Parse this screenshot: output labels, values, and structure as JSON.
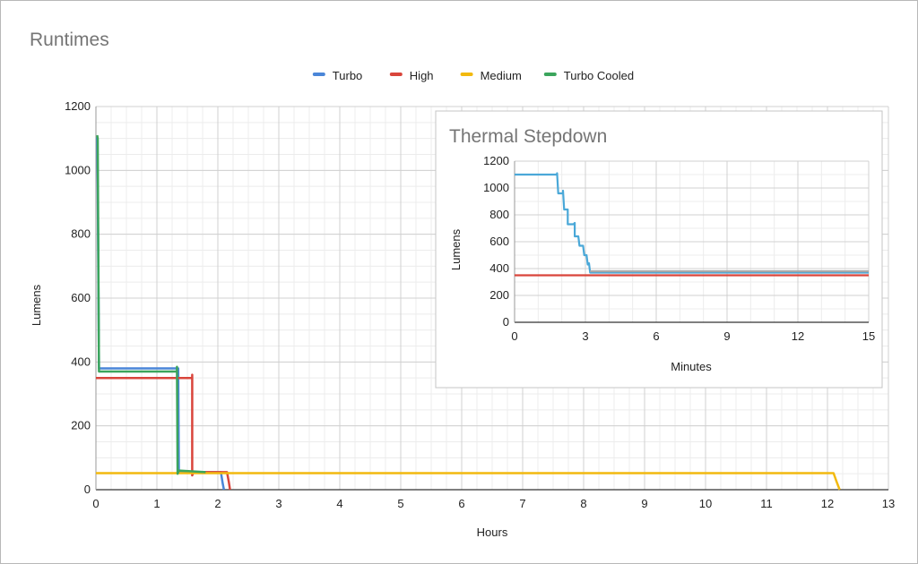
{
  "chart_data": [
    {
      "type": "line",
      "title": "Runtimes",
      "xlabel": "Hours",
      "ylabel": "Lumens",
      "xlim": [
        0,
        13
      ],
      "ylim": [
        0,
        1200
      ],
      "xticks": [
        0,
        1,
        2,
        3,
        4,
        5,
        6,
        7,
        8,
        9,
        10,
        11,
        12,
        13
      ],
      "yticks": [
        0,
        200,
        400,
        600,
        800,
        1000,
        1200
      ],
      "grid": true,
      "legend_position": "top",
      "series": [
        {
          "name": "Turbo",
          "color": "#4a86d8",
          "points": [
            [
              0,
              1100
            ],
            [
              0.02,
              1100
            ],
            [
              0.03,
              950
            ],
            [
              0.05,
              380
            ],
            [
              1.35,
              380
            ],
            [
              1.36,
              55
            ],
            [
              2.05,
              55
            ],
            [
              2.08,
              20
            ],
            [
              2.1,
              0
            ]
          ]
        },
        {
          "name": "High",
          "color": "#d9453b",
          "points": [
            [
              0,
              350
            ],
            [
              1.58,
              350
            ],
            [
              1.58,
              360
            ],
            [
              1.58,
              45
            ],
            [
              1.6,
              55
            ],
            [
              2.15,
              55
            ],
            [
              2.18,
              25
            ],
            [
              2.2,
              0
            ]
          ]
        },
        {
          "name": "Medium",
          "color": "#f2b90f",
          "points": [
            [
              0,
              52
            ],
            [
              12.1,
              52
            ],
            [
              12.15,
              25
            ],
            [
              12.2,
              0
            ]
          ]
        },
        {
          "name": "Turbo Cooled",
          "color": "#3ba55c",
          "points": [
            [
              0.02,
              1110
            ],
            [
              0.03,
              1100
            ],
            [
              0.05,
              370
            ],
            [
              1.33,
              370
            ],
            [
              1.33,
              385
            ],
            [
              1.34,
              50
            ],
            [
              1.36,
              60
            ],
            [
              1.8,
              55
            ]
          ]
        }
      ]
    },
    {
      "type": "line",
      "title": "Thermal Stepdown",
      "xlabel": "Minutes",
      "ylabel": "Lumens",
      "xlim": [
        0,
        15
      ],
      "ylim": [
        0,
        1200
      ],
      "xticks": [
        0,
        3,
        6,
        9,
        12,
        15
      ],
      "yticks": [
        0,
        200,
        400,
        600,
        800,
        1000,
        1200
      ],
      "grid": true,
      "series": [
        {
          "color": "#4aa8d8",
          "points": [
            [
              0,
              1100
            ],
            [
              1.8,
              1100
            ],
            [
              1.8,
              1110
            ],
            [
              1.85,
              960
            ],
            [
              2.05,
              960
            ],
            [
              2.05,
              980
            ],
            [
              2.1,
              840
            ],
            [
              2.25,
              840
            ],
            [
              2.25,
              730
            ],
            [
              2.5,
              730
            ],
            [
              2.55,
              740
            ],
            [
              2.55,
              640
            ],
            [
              2.7,
              640
            ],
            [
              2.75,
              570
            ],
            [
              2.9,
              570
            ],
            [
              2.95,
              500
            ],
            [
              3.05,
              500
            ],
            [
              3.1,
              430
            ],
            [
              3.15,
              440
            ],
            [
              3.2,
              370
            ],
            [
              15,
              370
            ]
          ]
        },
        {
          "color": "#a8a8a8",
          "points": [
            [
              3.2,
              380
            ],
            [
              15,
              380
            ]
          ]
        },
        {
          "color": "#d9453b",
          "points": [
            [
              0,
              350
            ],
            [
              15,
              350
            ]
          ]
        }
      ]
    }
  ]
}
